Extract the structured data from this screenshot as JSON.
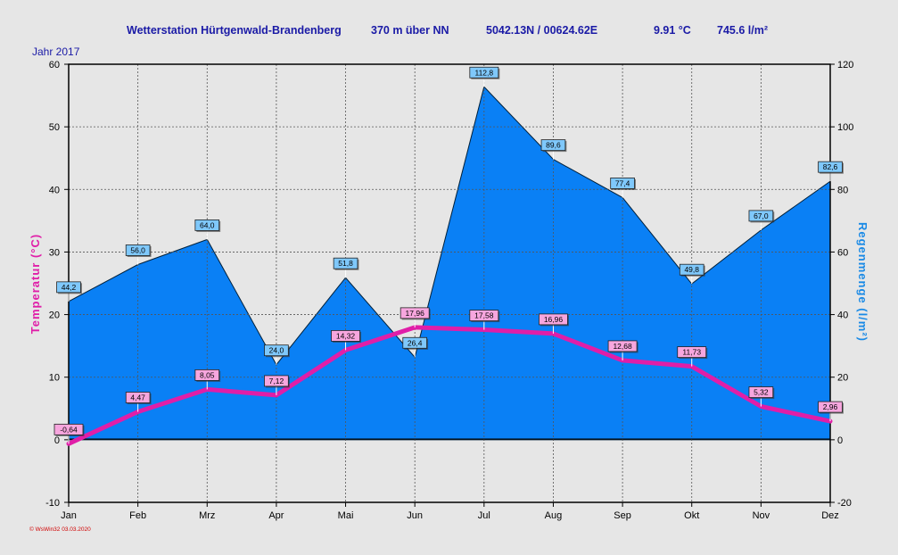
{
  "header": {
    "station": "Wetterstation Hürtgenwald-Brandenberg",
    "altitude": "370 m über NN",
    "coords": "5042.13N / 00624.62E",
    "avg_temp": "9.91 °C",
    "rain_total": "745.6 l/m²"
  },
  "year_label": "Jahr  2017",
  "footer": "© WsWin32  03.03.2020",
  "colors": {
    "temperature": "#e01ea8",
    "rain_fill": "#0a80f5",
    "plot_bg": "#e6e6e6",
    "header_text": "#1a1aa6"
  },
  "chart_data": {
    "type": "line+area",
    "categories": [
      "Jan",
      "Feb",
      "Mrz",
      "Apr",
      "Mai",
      "Jun",
      "Jul",
      "Aug",
      "Sep",
      "Okt",
      "Nov",
      "Dez"
    ],
    "series": [
      {
        "name": "Temperatur",
        "axis": "left",
        "type": "line",
        "values": [
          -0.64,
          4.47,
          8.05,
          7.12,
          14.32,
          17.96,
          17.58,
          16.96,
          12.68,
          11.73,
          5.32,
          2.96
        ],
        "labels": [
          "-0,64",
          "4,47",
          "8,05",
          "7,12",
          "14,32",
          "17,96",
          "17,58",
          "16,96",
          "12,68",
          "11,73",
          "5,32",
          "2,96"
        ]
      },
      {
        "name": "Regenmenge",
        "axis": "right",
        "type": "area",
        "values": [
          44.2,
          56.0,
          64.0,
          24.0,
          51.8,
          26.4,
          112.8,
          89.6,
          77.4,
          49.8,
          67.0,
          82.6
        ],
        "labels": [
          "44,2",
          "56,0",
          "64,0",
          "24,0",
          "51,8",
          "26,4",
          "112,8",
          "89,6",
          "77,4",
          "49,8",
          "67,0",
          "82,6"
        ]
      }
    ],
    "ylabel_left": "Temperatur  (°C)",
    "ylabel_right": "Regenmenge  (l/m²)",
    "ylim_left": [
      -10,
      60
    ],
    "ylim_right": [
      -20,
      120
    ],
    "yticks_left": [
      -10,
      0,
      10,
      20,
      30,
      40,
      50,
      60
    ],
    "yticks_right": [
      -20,
      0,
      20,
      40,
      60,
      80,
      100,
      120
    ],
    "grid": true
  }
}
